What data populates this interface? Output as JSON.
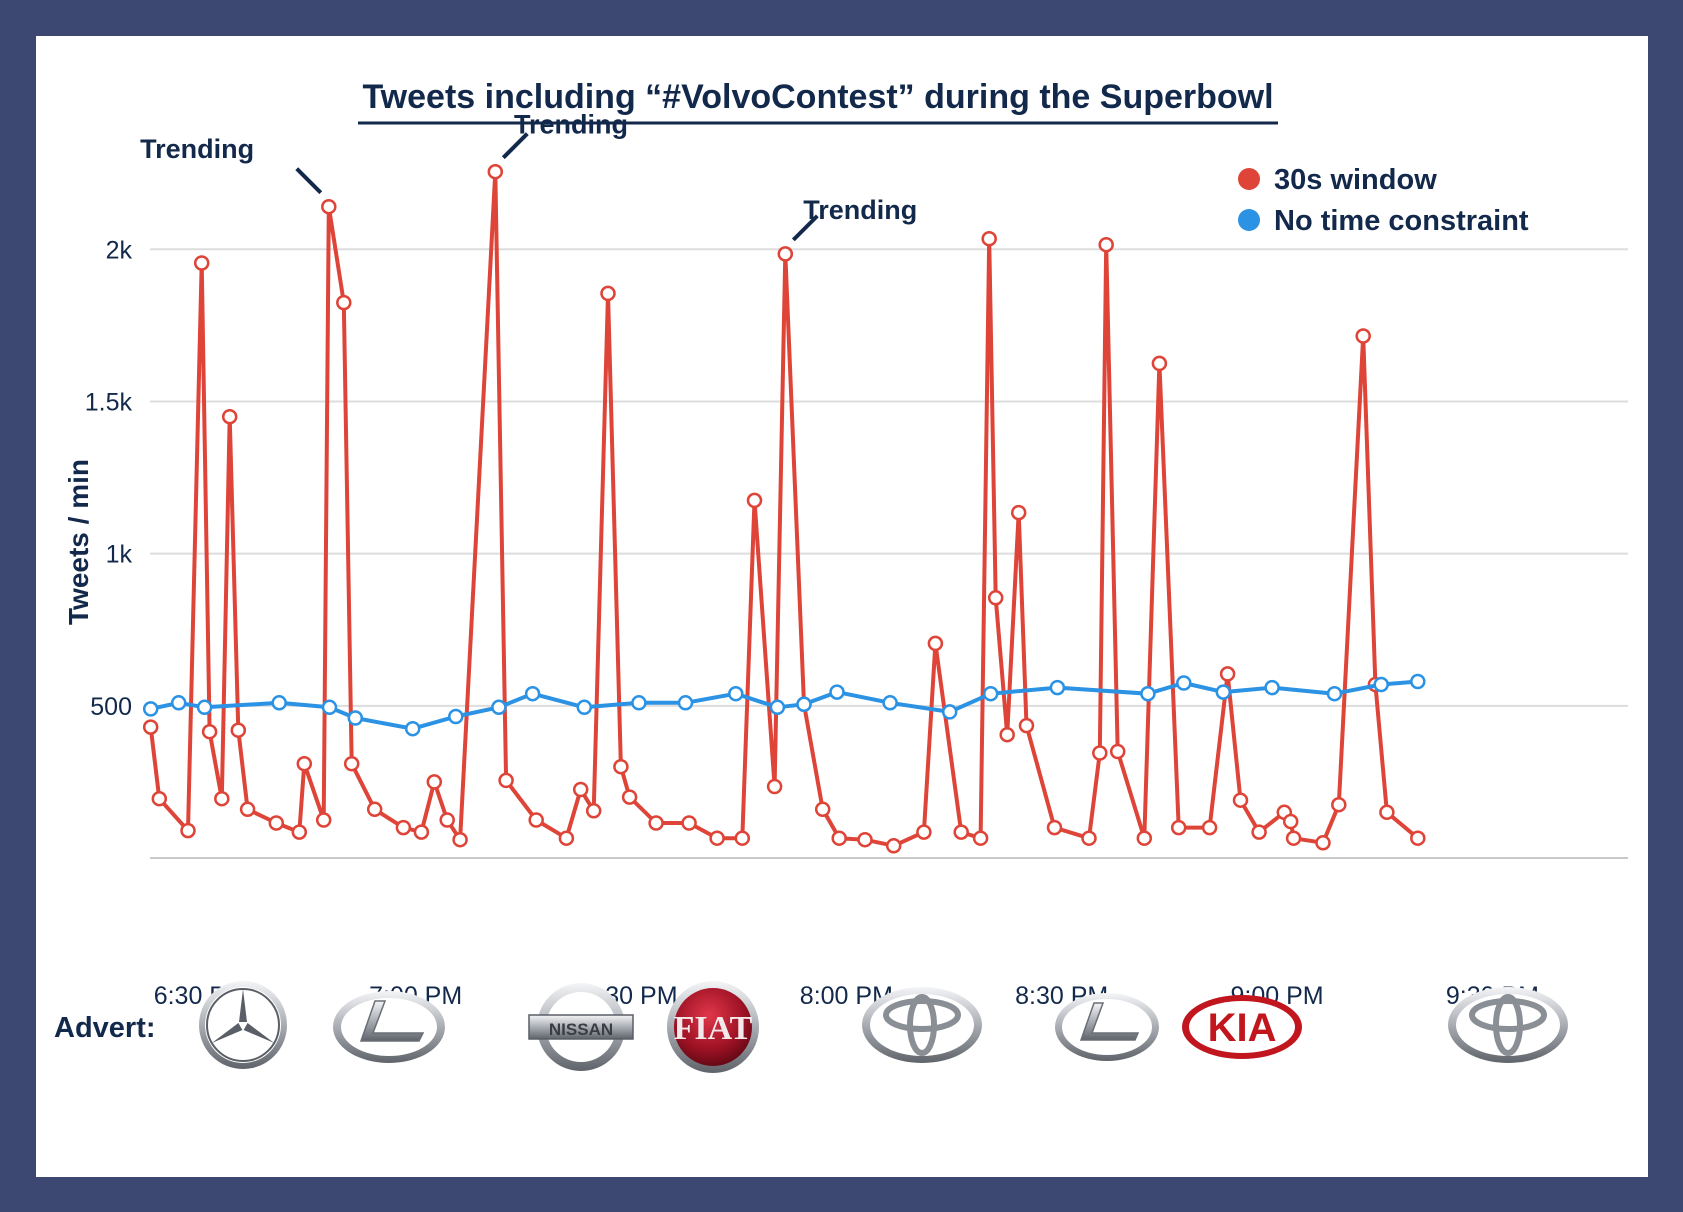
{
  "chart_data": {
    "type": "line",
    "title": "Tweets including “#VolvoContest” during the Superbowl",
    "xlabel": "",
    "ylabel": "Tweets / min",
    "x_ticks": [
      {
        "t": 30,
        "label": "6:30 PM"
      },
      {
        "t": 60,
        "label": "7:00 PM"
      },
      {
        "t": 90,
        "label": "7:30 PM"
      },
      {
        "t": 120,
        "label": "8:00 PM"
      },
      {
        "t": 150,
        "label": "8:30 PM"
      },
      {
        "t": 180,
        "label": "9:00 PM"
      },
      {
        "t": 210,
        "label": "9:30 PM"
      }
    ],
    "x_unit_note": "minutes after 6:00 PM",
    "xlim": [
      23,
      213
    ],
    "y_ticks": [
      {
        "v": 500,
        "label": "500"
      },
      {
        "v": 1000,
        "label": "1k"
      },
      {
        "v": 1500,
        "label": "1.5k"
      },
      {
        "v": 2000,
        "label": "2k"
      }
    ],
    "ylim": [
      0,
      2300
    ],
    "grid": true,
    "legend_position": "top-right",
    "series": [
      {
        "name": "30s window",
        "color": "#de4437",
        "markers": "hollow",
        "points": [
          [
            23.1,
            430
          ],
          [
            24.3,
            195
          ],
          [
            28.3,
            90
          ],
          [
            30.2,
            1955
          ],
          [
            31.3,
            415
          ],
          [
            33.0,
            195
          ],
          [
            34.1,
            1450
          ],
          [
            35.3,
            420
          ],
          [
            36.6,
            160
          ],
          [
            40.6,
            115
          ],
          [
            43.8,
            85
          ],
          [
            44.5,
            310
          ],
          [
            47.2,
            125
          ],
          [
            47.9,
            2140
          ],
          [
            50.0,
            1825
          ],
          [
            51.1,
            310
          ],
          [
            54.3,
            160
          ],
          [
            58.3,
            100
          ],
          [
            60.8,
            85
          ],
          [
            62.6,
            250
          ],
          [
            64.4,
            125
          ],
          [
            66.2,
            60
          ],
          [
            71.1,
            2255
          ],
          [
            72.6,
            255
          ],
          [
            76.8,
            125
          ],
          [
            81.0,
            65
          ],
          [
            83.0,
            225
          ],
          [
            84.8,
            155
          ],
          [
            86.8,
            1855
          ],
          [
            88.6,
            300
          ],
          [
            89.8,
            200
          ],
          [
            93.5,
            115
          ],
          [
            98.1,
            115
          ],
          [
            102.0,
            65
          ],
          [
            105.5,
            65
          ],
          [
            107.2,
            1175
          ],
          [
            110.0,
            235
          ],
          [
            111.5,
            1985
          ],
          [
            114.1,
            505
          ],
          [
            116.7,
            160
          ],
          [
            119.0,
            65
          ],
          [
            122.6,
            60
          ],
          [
            126.6,
            40
          ],
          [
            130.8,
            85
          ],
          [
            132.4,
            705
          ],
          [
            136.0,
            85
          ],
          [
            138.7,
            65
          ],
          [
            139.9,
            2035
          ],
          [
            140.8,
            855
          ],
          [
            142.4,
            405
          ],
          [
            144.0,
            1135
          ],
          [
            145.1,
            435
          ],
          [
            149.0,
            100
          ],
          [
            153.8,
            65
          ],
          [
            155.3,
            345
          ],
          [
            156.2,
            2015
          ],
          [
            157.8,
            350
          ],
          [
            161.5,
            65
          ],
          [
            163.6,
            1625
          ],
          [
            166.3,
            100
          ],
          [
            170.6,
            100
          ],
          [
            173.1,
            605
          ],
          [
            174.9,
            190
          ],
          [
            177.5,
            85
          ],
          [
            181.0,
            150
          ],
          [
            181.9,
            120
          ],
          [
            182.3,
            65
          ],
          [
            186.4,
            50
          ],
          [
            188.6,
            175
          ],
          [
            192.0,
            1715
          ],
          [
            193.7,
            570
          ],
          [
            195.3,
            150
          ],
          [
            199.6,
            65
          ]
        ]
      },
      {
        "name": "No time constraint",
        "color": "#2b92e4",
        "markers": "hollow",
        "points": [
          [
            23.1,
            490
          ],
          [
            27.0,
            510
          ],
          [
            30.6,
            495
          ],
          [
            41.0,
            510
          ],
          [
            48.0,
            495
          ],
          [
            51.6,
            460
          ],
          [
            59.6,
            425
          ],
          [
            65.6,
            465
          ],
          [
            71.6,
            495
          ],
          [
            76.3,
            540
          ],
          [
            83.5,
            495
          ],
          [
            91.1,
            510
          ],
          [
            97.6,
            510
          ],
          [
            104.6,
            540
          ],
          [
            110.4,
            495
          ],
          [
            114.1,
            505
          ],
          [
            118.7,
            545
          ],
          [
            126.1,
            510
          ],
          [
            134.4,
            480
          ],
          [
            140.1,
            540
          ],
          [
            149.4,
            560
          ],
          [
            162.0,
            540
          ],
          [
            167.0,
            575
          ],
          [
            172.5,
            545
          ],
          [
            179.3,
            560
          ],
          [
            188.0,
            540
          ],
          [
            194.5,
            570
          ],
          [
            199.6,
            580
          ]
        ]
      }
    ],
    "annotations": [
      {
        "text": "Trending",
        "anchor": [
          47.9,
          2140
        ],
        "side": "left",
        "text_at": [
          37.5,
          2300
        ]
      },
      {
        "text": "Trending",
        "anchor": [
          71.1,
          2255
        ],
        "side": "right",
        "text_at": [
          73.7,
          2380
        ]
      },
      {
        "text": "Trending",
        "anchor": [
          111.5,
          1985
        ],
        "side": "right",
        "text_at": [
          114.0,
          2100
        ]
      }
    ]
  },
  "advert": {
    "label": "Advert:",
    "logos": [
      {
        "brand": "Mercedes-Benz",
        "icon": "mercedes-logo-icon"
      },
      {
        "brand": "Lexus",
        "icon": "lexus-logo-icon"
      },
      {
        "brand": "Nissan",
        "icon": "nissan-logo-icon",
        "wordmark": "NISSAN"
      },
      {
        "brand": "Fiat",
        "icon": "fiat-logo-icon",
        "wordmark": "FIAT"
      },
      {
        "brand": "Toyota",
        "icon": "toyota-logo-icon"
      },
      {
        "brand": "Lexus",
        "icon": "lexus-logo-icon"
      },
      {
        "brand": "Kia",
        "icon": "kia-logo-icon",
        "wordmark": "KIA"
      },
      {
        "brand": "Toyota",
        "icon": "toyota-logo-icon"
      }
    ]
  },
  "colors": {
    "frame": "#3d4872",
    "text": "#13294b",
    "grid": "#dddddd",
    "series_30s": "#de4437",
    "series_no_constraint": "#2b92e4"
  }
}
